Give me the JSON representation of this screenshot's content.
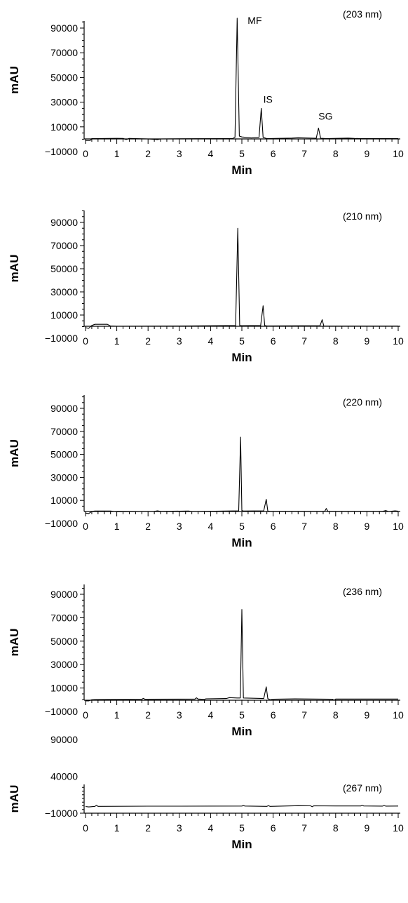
{
  "chart_data": [
    {
      "type": "line",
      "wavelength_label": "(203 nm)",
      "xlabel": "Min",
      "ylabel": "mAU",
      "xlim": [
        0,
        10
      ],
      "ylim": [
        -10000,
        100000
      ],
      "x_ticks": [
        "0",
        "1",
        "2",
        "3",
        "4",
        "5",
        "6",
        "7",
        "8",
        "9",
        "10"
      ],
      "y_ticks": [
        {
          "value": 90000,
          "label": "90000"
        },
        {
          "value": 70000,
          "label": "70000"
        },
        {
          "value": 50000,
          "label": "50000"
        },
        {
          "value": 30000,
          "label": "30000"
        },
        {
          "value": 10000,
          "label": "10000"
        },
        {
          "value": -10000,
          "label": "−10000"
        }
      ],
      "peaks": [
        {
          "name": "MF",
          "time": 4.85,
          "height": 98000
        },
        {
          "name": "IS",
          "time": 5.62,
          "height": 25000
        },
        {
          "name": "SG",
          "time": 7.45,
          "height": 9000
        }
      ],
      "x": [
        0,
        0.15,
        0.2,
        0.3,
        1.0,
        1.2,
        1.3,
        1.4,
        2.0,
        2.3,
        2.4,
        3.5,
        4.5,
        4.7,
        4.78,
        4.85,
        4.92,
        5.0,
        5.3,
        5.55,
        5.62,
        5.68,
        5.8,
        6.6,
        6.8,
        7.38,
        7.45,
        7.52,
        7.7,
        8.4,
        8.6,
        8.8,
        10.0
      ],
      "y": [
        -1000,
        -1000,
        500,
        500,
        700,
        600,
        -200,
        600,
        200,
        -300,
        200,
        400,
        500,
        500,
        1500,
        98000,
        2500,
        1800,
        1000,
        1500,
        25000,
        1500,
        500,
        900,
        1200,
        800,
        9000,
        800,
        500,
        900,
        600,
        500,
        500
      ]
    },
    {
      "type": "line",
      "wavelength_label": "(210 nm)",
      "xlabel": "Min",
      "ylabel": "mAU",
      "xlim": [
        0,
        10
      ],
      "ylim": [
        -10000,
        100000
      ],
      "x_ticks": [
        "0",
        "1",
        "2",
        "3",
        "4",
        "5",
        "6",
        "7",
        "8",
        "9",
        "10"
      ],
      "y_ticks": [
        {
          "value": 90000,
          "label": "90000"
        },
        {
          "value": 70000,
          "label": "70000"
        },
        {
          "value": 50000,
          "label": "50000"
        },
        {
          "value": 30000,
          "label": "30000"
        },
        {
          "value": 10000,
          "label": "10000"
        },
        {
          "value": -10000,
          "label": "−10000"
        }
      ],
      "x": [
        0,
        0.1,
        0.2,
        0.3,
        0.7,
        0.8,
        1.0,
        3.0,
        4.8,
        4.87,
        4.93,
        5.0,
        5.6,
        5.68,
        5.73,
        5.8,
        7.5,
        7.57,
        7.62,
        7.7,
        10.0
      ],
      "y": [
        -1000,
        -1500,
        1000,
        2000,
        2000,
        500,
        300,
        500,
        1000,
        85000,
        1000,
        800,
        1000,
        18000,
        1000,
        600,
        800,
        6000,
        500,
        400,
        400
      ]
    },
    {
      "type": "line",
      "wavelength_label": "(220 nm)",
      "xlabel": "Min",
      "ylabel": "mAU",
      "xlim": [
        0,
        10
      ],
      "ylim": [
        -10000,
        100000
      ],
      "x_ticks": [
        "0",
        "1",
        "2",
        "3",
        "4",
        "5",
        "6",
        "7",
        "8",
        "9",
        "10"
      ],
      "y_ticks": [
        {
          "value": 90000,
          "label": "90000"
        },
        {
          "value": 70000,
          "label": "70000"
        },
        {
          "value": 50000,
          "label": "50000"
        },
        {
          "value": 30000,
          "label": "30000"
        },
        {
          "value": 10000,
          "label": "10000"
        },
        {
          "value": -10000,
          "label": "−10000"
        }
      ],
      "x": [
        0,
        0.1,
        0.2,
        0.3,
        0.8,
        1.0,
        2.2,
        2.3,
        2.4,
        3.3,
        3.4,
        4.9,
        4.96,
        5.0,
        5.05,
        5.7,
        5.78,
        5.83,
        5.9,
        7.65,
        7.7,
        7.75,
        9.5,
        9.6,
        9.7,
        9.9,
        10.0
      ],
      "y": [
        -1000,
        -1500,
        500,
        800,
        800,
        100,
        500,
        1000,
        500,
        800,
        300,
        1000,
        65000,
        1200,
        800,
        1000,
        11000,
        800,
        500,
        500,
        3000,
        500,
        500,
        1200,
        300,
        1000,
        600
      ]
    },
    {
      "type": "line",
      "wavelength_label": "(236 nm)",
      "xlabel": "Min",
      "ylabel": "mAU",
      "xlim": [
        0,
        10
      ],
      "ylim": [
        -10000,
        100000
      ],
      "x_ticks": [
        "0",
        "1",
        "2",
        "3",
        "4",
        "5",
        "6",
        "7",
        "8",
        "9",
        "10"
      ],
      "y_ticks": [
        {
          "value": 90000,
          "label": "90000"
        },
        {
          "value": 70000,
          "label": "70000"
        },
        {
          "value": 50000,
          "label": "50000"
        },
        {
          "value": 30000,
          "label": "30000"
        },
        {
          "value": 10000,
          "label": "10000"
        },
        {
          "value": -10000,
          "label": "−10000"
        }
      ],
      "x": [
        0,
        0.1,
        0.2,
        0.3,
        1.8,
        1.85,
        1.9,
        3.5,
        3.55,
        3.6,
        3.8,
        3.85,
        4.5,
        4.6,
        4.85,
        4.95,
        5.0,
        5.05,
        5.7,
        5.78,
        5.83,
        5.9,
        6.0,
        6.7,
        7.9,
        7.95,
        8.0,
        10.0
      ],
      "y": [
        -1000,
        -1000,
        0,
        100,
        400,
        1200,
        400,
        600,
        1600,
        600,
        300,
        800,
        1000,
        1800,
        1500,
        1500,
        77000,
        1500,
        1000,
        11000,
        1000,
        0,
        500,
        700,
        500,
        -500,
        600,
        600
      ]
    },
    {
      "type": "line",
      "wavelength_label": "(267 nm)",
      "xlabel": "Min",
      "ylabel": "mAU",
      "xlim": [
        0,
        10
      ],
      "ylim": [
        -10000,
        100000
      ],
      "x_ticks": [
        "0",
        "1",
        "2",
        "3",
        "4",
        "5",
        "6",
        "7",
        "8",
        "9",
        "10"
      ],
      "y_ticks": [
        {
          "value": 90000,
          "label": "90000"
        },
        {
          "value": 40000,
          "label": "40000"
        },
        {
          "value": -10000,
          "label": "−10000"
        }
      ],
      "x": [
        0,
        0.1,
        0.3,
        0.35,
        0.4,
        2.0,
        3.0,
        5.0,
        5.05,
        5.1,
        5.8,
        5.85,
        5.9,
        6.8,
        7.2,
        7.25,
        7.3,
        8.0,
        8.8,
        8.85,
        8.9,
        9.5,
        9.55,
        9.6,
        10.0
      ],
      "y": [
        -1000,
        -1500,
        -800,
        800,
        -800,
        -500,
        -500,
        -300,
        300,
        -300,
        -800,
        200,
        -800,
        200,
        0,
        -1200,
        0,
        -200,
        -200,
        600,
        -200,
        -400,
        400,
        -400,
        -300
      ]
    }
  ]
}
